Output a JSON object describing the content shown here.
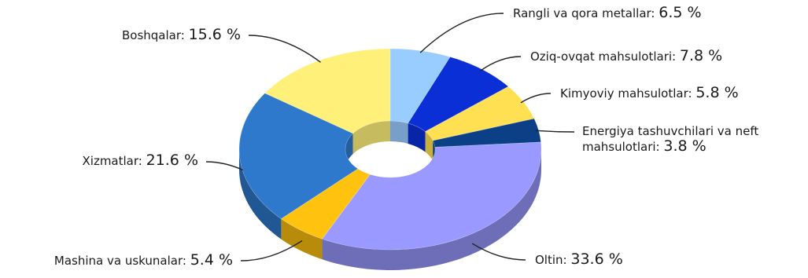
{
  "chart_data": {
    "type": "pie",
    "variant": "3d-donut",
    "title": "",
    "slices": [
      {
        "name": "Rangli va qora metallar",
        "value": 6.5,
        "display": "6.5 %",
        "color": "#99ccff"
      },
      {
        "name": "Oziq-ovqat mahsulotlari",
        "value": 7.8,
        "display": "7.8 %",
        "color": "#0a2fd6"
      },
      {
        "name": "Kimyoviy mahsulotlar",
        "value": 5.8,
        "display": "5.8 %",
        "color": "#ffe052"
      },
      {
        "name": "Energiya tashuvchilari va neft mahsulotlari",
        "name_lines": [
          "Energiya tashuvchilari va neft",
          "mahsulotlari:"
        ],
        "value": 3.8,
        "display": "3.8 %",
        "color": "#0b3f86"
      },
      {
        "name": "Oltin",
        "value": 33.6,
        "display": "33.6 %",
        "color": "#9999ff"
      },
      {
        "name": "Mashina va uskunalar",
        "value": 5.4,
        "display": "5.4 %",
        "color": "#ffc20e"
      },
      {
        "name": "Xizmatlar",
        "value": 21.6,
        "display": "21.6 %",
        "color": "#2e79cc"
      },
      {
        "name": "Boshqalar",
        "value": 15.6,
        "display": "15.6 %",
        "color": "#fff07a"
      }
    ],
    "unit": "%",
    "legend": "none (leader-line labels)"
  }
}
